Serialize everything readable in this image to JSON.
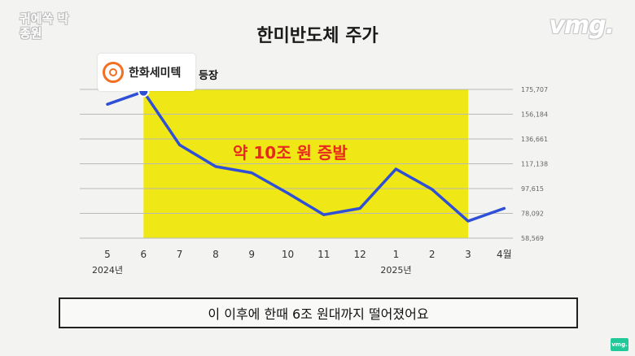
{
  "branding": {
    "left_logo": "귀에쏙 박종원",
    "right_logo": "vmg.",
    "corner_logo": "vmg."
  },
  "title": "한미반도체 주가",
  "company": {
    "name": "한화세미텍",
    "appear_label": "등장"
  },
  "annotation": "약 10조 원 증발",
  "caption": "이 이후에 한때 6조 원대까지 떨어졌어요",
  "colors": {
    "line": "#2e4fd6",
    "highlight": "#f0e816",
    "annotation": "#e8281e",
    "company_logo": "#f36f21"
  },
  "chart_data": {
    "type": "line",
    "title": "한미반도체 주가",
    "categories": [
      "5",
      "6",
      "7",
      "8",
      "9",
      "10",
      "11",
      "12",
      "1",
      "2",
      "3",
      "4월"
    ],
    "year_labels": [
      {
        "category": "5",
        "label": "2024년"
      },
      {
        "category": "1",
        "label": "2025년"
      }
    ],
    "series": [
      {
        "values": [
          164000,
          174000,
          132000,
          115000,
          110000,
          94000,
          77000,
          82000,
          113000,
          97000,
          72000,
          82000
        ]
      }
    ],
    "y_ticks": [
      175707,
      156184,
      136661,
      117138,
      97615,
      78092,
      58569
    ],
    "y_tick_labels": [
      "175,707",
      "156,184",
      "136,661",
      "117,138",
      "97,615",
      "78,092",
      "58,569"
    ],
    "ylim": [
      58569,
      175707
    ],
    "highlight_range": [
      "6",
      "3"
    ],
    "marker_category": "6",
    "grid": true
  }
}
